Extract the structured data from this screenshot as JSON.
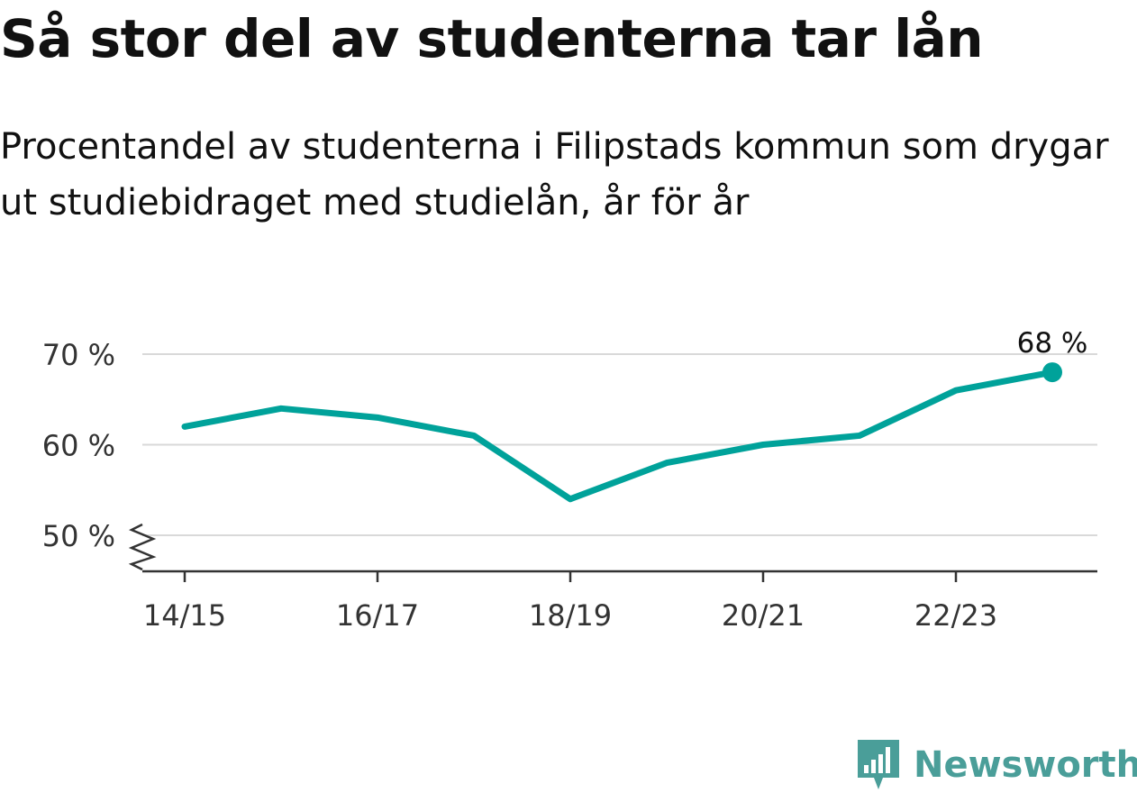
{
  "header": {
    "title": "Så stor del av studenterna tar lån",
    "subtitle": "Procentandel av studenterna i Filipstads kommun som drygar ut studiebidraget med studielån, år för år"
  },
  "chart_data": {
    "type": "line",
    "x": [
      "14/15",
      "15/16",
      "16/17",
      "17/18",
      "18/19",
      "19/20",
      "20/21",
      "21/22",
      "22/23",
      "23/24"
    ],
    "xticks": [
      "14/15",
      "16/17",
      "18/19",
      "20/21",
      "22/23"
    ],
    "series": [
      {
        "values": [
          62,
          64,
          63,
          61,
          54,
          58,
          60,
          61,
          66,
          68
        ]
      }
    ],
    "yticks": [
      50,
      60,
      70
    ],
    "ytick_labels": [
      "50 %",
      "60 %",
      "70 %"
    ],
    "ylim": [
      50,
      70
    ],
    "axis_break": true,
    "grid": true,
    "end_label": "68 %",
    "line_color": "#00a29a"
  },
  "footer": {
    "brand": "Newsworthy",
    "brand_color": "#4a9e99",
    "logo_icon": "newsworthy-logo-icon"
  }
}
